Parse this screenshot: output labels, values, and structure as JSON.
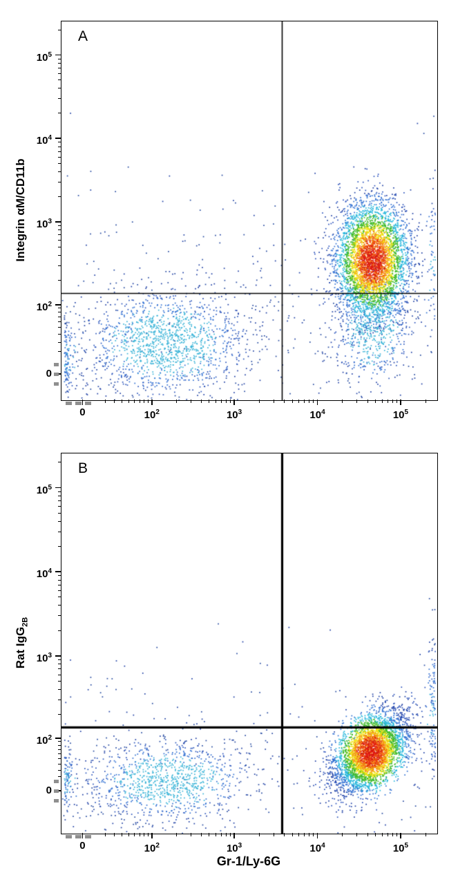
{
  "figure": {
    "background": "#ffffff"
  },
  "chart_data": [
    {
      "type": "scatter",
      "subtype": "flow-cytometry-pseudocolor-density",
      "panel_label": "A",
      "xlabel": "Gr-1/Ly-6G",
      "ylabel_main": "Integrin αM/CD11b",
      "ylabel_sub": "",
      "x_range": [
        -20,
        270000
      ],
      "y_range": [
        -40,
        260000
      ],
      "x_ticks": [
        {
          "v": 0,
          "label": "0"
        },
        {
          "v": 100,
          "base": "10",
          "exp": "2"
        },
        {
          "v": 1000,
          "base": "10",
          "exp": "3"
        },
        {
          "v": 10000,
          "base": "10",
          "exp": "4"
        },
        {
          "v": 100000,
          "base": "10",
          "exp": "5"
        }
      ],
      "y_ticks": [
        {
          "v": 0,
          "label": "0"
        },
        {
          "v": 100,
          "base": "10",
          "exp": "2"
        },
        {
          "v": 1000,
          "base": "10",
          "exp": "3"
        },
        {
          "v": 10000,
          "base": "10",
          "exp": "4"
        },
        {
          "v": 100000,
          "base": "10",
          "exp": "5"
        }
      ],
      "x_scale": {
        "linearize": 30,
        "tmin": -0.6,
        "tmax": 9.8
      },
      "y_scale": {
        "linearize": 30,
        "tmin": -0.7,
        "tmax": 9.75
      },
      "minor_decades": [
        10,
        100,
        1000,
        10000,
        100000
      ],
      "gates": {
        "x_value": 3700,
        "y_value": 140,
        "line_width": 1.6
      },
      "grid": false,
      "legend": false,
      "populations": [
        {
          "name": "gr1pos-cd11bpos-main",
          "n": 4500,
          "x_center": 45000,
          "y_center": 350,
          "sx": 0.5,
          "sy": 0.8,
          "rho": 0.0,
          "palette": "jet"
        },
        {
          "name": "gr1pos-below-gate-tail",
          "n": 650,
          "x_center": 45000,
          "y_center": 50,
          "sx": 0.55,
          "sy": 0.8,
          "rho": 0.1,
          "palette": "blues"
        },
        {
          "name": "double-negative-cloud",
          "n": 1500,
          "x_center": 150,
          "y_center": 30,
          "sx": 1.15,
          "sy": 0.75,
          "rho": 0.1,
          "palette": "blues"
        },
        {
          "name": "sparse-background",
          "n": 280,
          "uniform_x": [
            -0.5,
            9.7
          ],
          "y_center": 80,
          "sy": 2.0,
          "palette": "blues",
          "dim": true
        },
        {
          "name": "left-edge-pileup",
          "n": 130,
          "edge": "left",
          "y_center": 15,
          "sy": 0.6,
          "palette": "blues"
        },
        {
          "name": "right-edge-pileup",
          "n": 55,
          "edge": "right",
          "y_center": 300,
          "sy": 1.2,
          "palette": "blues"
        }
      ]
    },
    {
      "type": "scatter",
      "subtype": "flow-cytometry-pseudocolor-density",
      "panel_label": "B",
      "xlabel": "Gr-1/Ly-6G",
      "ylabel_main": "Rat IgG",
      "ylabel_sub": "2B",
      "x_range": [
        -20,
        270000
      ],
      "y_range": [
        -60,
        260000
      ],
      "x_ticks": [
        {
          "v": 0,
          "label": "0"
        },
        {
          "v": 100,
          "base": "10",
          "exp": "2"
        },
        {
          "v": 1000,
          "base": "10",
          "exp": "3"
        },
        {
          "v": 10000,
          "base": "10",
          "exp": "4"
        },
        {
          "v": 100000,
          "base": "10",
          "exp": "5"
        }
      ],
      "y_ticks": [
        {
          "v": 0,
          "label": "0"
        },
        {
          "v": 100,
          "base": "10",
          "exp": "2"
        },
        {
          "v": 1000,
          "base": "10",
          "exp": "3"
        },
        {
          "v": 10000,
          "base": "10",
          "exp": "4"
        },
        {
          "v": 100000,
          "base": "10",
          "exp": "5"
        }
      ],
      "x_scale": {
        "linearize": 30,
        "tmin": -0.6,
        "tmax": 9.8
      },
      "y_scale": {
        "linearize": 50,
        "tmin": -1.15,
        "tmax": 9.25
      },
      "minor_decades": [
        10,
        100,
        1000,
        10000,
        100000
      ],
      "gates": {
        "x_value": 3700,
        "y_value": 140,
        "line_width": 3.2
      },
      "grid": false,
      "legend": false,
      "populations": [
        {
          "name": "gr1pos-isotype-main",
          "n": 4200,
          "x_center": 43000,
          "y_center": 65,
          "sx": 0.5,
          "sy": 0.55,
          "rho": 0.45,
          "palette": "jet"
        },
        {
          "name": "double-negative-cloud",
          "n": 1100,
          "x_center": 150,
          "y_center": 15,
          "sx": 1.15,
          "sy": 0.55,
          "rho": 0.1,
          "palette": "blues"
        },
        {
          "name": "sparse-background",
          "n": 220,
          "uniform_x": [
            -0.5,
            9.7
          ],
          "y_center": 45,
          "sy": 1.5,
          "palette": "blues",
          "dim": true
        },
        {
          "name": "left-edge-pileup",
          "n": 100,
          "edge": "left",
          "y_center": 15,
          "sy": 0.5,
          "palette": "blues"
        },
        {
          "name": "right-edge-pileup",
          "n": 110,
          "edge": "right",
          "y_center": 220,
          "sy": 1.0,
          "palette": "blues"
        }
      ]
    }
  ]
}
